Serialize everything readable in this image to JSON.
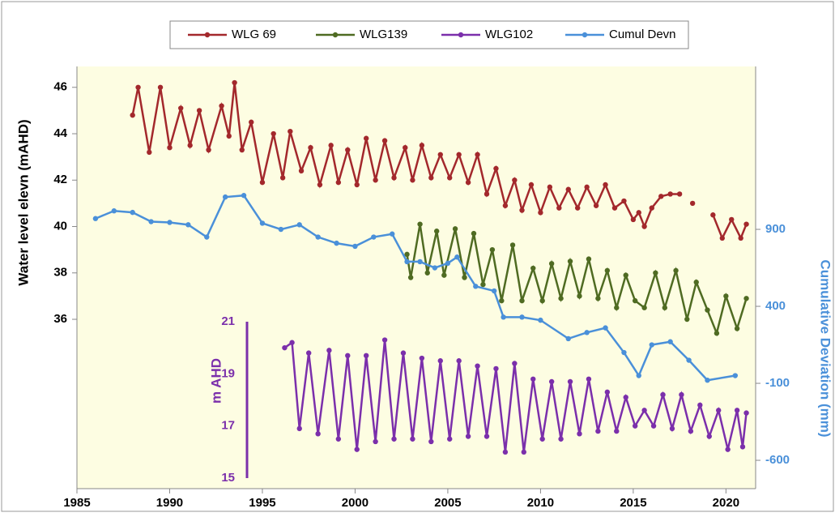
{
  "chart_data": {
    "type": "line",
    "y_label": "Water level elevn (mAHD)",
    "y2_label": "Cumulative Deviation (mm)",
    "y3_label": "m AHD",
    "xlim": [
      1985,
      2021.6
    ],
    "xticks": [
      1985,
      1990,
      1995,
      2000,
      2005,
      2010,
      2015,
      2020
    ],
    "ylim": [
      28.7,
      46.9
    ],
    "yticks": [
      36,
      38,
      40,
      42,
      44,
      46
    ],
    "y2lim": [
      -784,
      1958
    ],
    "y2ticks": [
      -600,
      -100,
      400,
      900
    ],
    "y3lim": [
      15,
      21
    ],
    "y3ticks": [
      15,
      17,
      19,
      21
    ],
    "legend": "top",
    "series": [
      {
        "name": "WLG 69",
        "color": "#a3282c",
        "axis": "y",
        "x": [
          1988.0,
          1988.3,
          1988.9,
          1989.5,
          1990.0,
          1990.6,
          1991.1,
          1991.6,
          1992.1,
          1992.8,
          1993.2,
          1993.5,
          1993.9,
          1994.4,
          1995.0,
          1995.6,
          1996.1,
          1996.5,
          1997.1,
          1997.6,
          1998.1,
          1998.7,
          1999.1,
          1999.6,
          2000.1,
          2000.6,
          2001.1,
          2001.6,
          2002.1,
          2002.7,
          2003.1,
          2003.6,
          2004.1,
          2004.6,
          2005.1,
          2005.6,
          2006.1,
          2006.6,
          2007.1,
          2007.6,
          2008.1,
          2008.6,
          2009.0,
          2009.5,
          2010.0,
          2010.5,
          2011.0,
          2011.5,
          2012.0,
          2012.5,
          2013.0,
          2013.5,
          2014.0,
          2014.5,
          2015.0,
          2015.3,
          2015.6,
          2016.0,
          2016.5,
          2017.0,
          2017.5,
          2017.9,
          2018.2,
          2018.7,
          2019.3,
          2019.8,
          2020.3,
          2020.8,
          2021.1
        ],
        "values": [
          44.8,
          46.0,
          43.2,
          46.0,
          43.4,
          45.1,
          43.5,
          45.0,
          43.3,
          45.2,
          43.9,
          46.2,
          43.3,
          44.5,
          41.9,
          44.0,
          42.1,
          44.1,
          42.4,
          43.4,
          41.8,
          43.5,
          41.9,
          43.3,
          41.8,
          43.8,
          42.0,
          43.7,
          42.1,
          43.4,
          42.0,
          43.5,
          42.1,
          43.1,
          42.1,
          43.1,
          41.9,
          43.1,
          41.4,
          42.5,
          40.9,
          42.0,
          40.7,
          41.8,
          40.6,
          41.7,
          40.8,
          41.6,
          40.8,
          41.7,
          40.9,
          41.8,
          40.8,
          41.1,
          40.3,
          40.6,
          40.0,
          40.8,
          41.3,
          41.4,
          41.4,
          null,
          41.0,
          null,
          40.5,
          39.5,
          40.3,
          39.5,
          40.1
        ]
      },
      {
        "name": "WLG139",
        "color": "#4f6b22",
        "axis": "y",
        "x": [
          2002.8,
          2003.0,
          2003.5,
          2003.9,
          2004.4,
          2004.8,
          2005.4,
          2005.9,
          2006.4,
          2006.9,
          2007.4,
          2007.9,
          2008.5,
          2009.0,
          2009.6,
          2010.1,
          2010.6,
          2011.1,
          2011.6,
          2012.1,
          2012.6,
          2013.1,
          2013.6,
          2014.1,
          2014.6,
          2015.1,
          2015.6,
          2016.2,
          2016.7,
          2017.3,
          2017.9,
          2018.4,
          2019.0,
          2019.5,
          2020.0,
          2020.6,
          2021.1
        ],
        "values": [
          38.8,
          37.8,
          40.1,
          38.0,
          39.8,
          37.9,
          39.9,
          37.8,
          39.7,
          37.5,
          39.0,
          36.8,
          39.2,
          36.8,
          38.2,
          36.8,
          38.4,
          36.9,
          38.5,
          37.0,
          38.6,
          36.9,
          38.1,
          36.5,
          37.9,
          36.8,
          36.5,
          38.0,
          36.5,
          38.1,
          36.0,
          37.6,
          36.4,
          35.4,
          37.0,
          35.6,
          36.9
        ]
      },
      {
        "name": "WLG102",
        "color": "#7b2fab",
        "axis": "y3",
        "x": [
          1996.2,
          1996.6,
          1997.0,
          1997.5,
          1998.0,
          1998.6,
          1999.1,
          1999.6,
          2000.1,
          2000.6,
          2001.1,
          2001.6,
          2002.1,
          2002.6,
          2003.1,
          2003.6,
          2004.1,
          2004.6,
          2005.1,
          2005.6,
          2006.1,
          2006.6,
          2007.1,
          2007.6,
          2008.1,
          2008.6,
          2009.1,
          2009.6,
          2010.1,
          2010.6,
          2011.1,
          2011.6,
          2012.1,
          2012.6,
          2013.1,
          2013.6,
          2014.1,
          2014.6,
          2015.1,
          2015.6,
          2016.1,
          2016.6,
          2017.1,
          2017.6,
          2018.1,
          2018.6,
          2019.1,
          2019.6,
          2020.1,
          2020.6,
          2020.9,
          2021.1
        ],
        "values": [
          20.0,
          20.2,
          16.9,
          19.8,
          16.7,
          19.9,
          16.5,
          19.7,
          16.1,
          19.7,
          16.4,
          20.3,
          16.5,
          19.8,
          16.5,
          19.6,
          16.4,
          19.5,
          16.5,
          19.5,
          16.6,
          19.3,
          16.6,
          19.2,
          16.0,
          19.4,
          16.0,
          18.8,
          16.5,
          18.7,
          16.5,
          18.7,
          16.7,
          18.8,
          16.8,
          18.3,
          16.8,
          18.1,
          17.0,
          17.6,
          17.0,
          18.2,
          16.9,
          18.2,
          16.8,
          17.8,
          16.6,
          17.6,
          16.1,
          17.6,
          16.2,
          17.5
        ]
      },
      {
        "name": "Cumul Devn",
        "color": "#4a90d9",
        "axis": "y2",
        "x": [
          1986.0,
          1987.0,
          1988.0,
          1989.0,
          1990.0,
          1991.0,
          1992.0,
          1993.0,
          1994.0,
          1995.0,
          1996.0,
          1997.0,
          1998.0,
          1999.0,
          2000.0,
          2001.0,
          2002.0,
          2002.8,
          2003.5,
          2004.3,
          2005.0,
          2005.5,
          2006.5,
          2007.5,
          2008.0,
          2009.0,
          2010.0,
          2011.5,
          2012.5,
          2013.5,
          2014.5,
          2015.3,
          2016.0,
          2017.0,
          2018.0,
          2019.0,
          2020.5
        ],
        "values": [
          970,
          1020,
          1010,
          950,
          945,
          930,
          850,
          1110,
          1120,
          940,
          900,
          930,
          850,
          810,
          790,
          850,
          870,
          690,
          690,
          650,
          680,
          720,
          530,
          500,
          330,
          330,
          310,
          190,
          230,
          260,
          100,
          -50,
          150,
          170,
          50,
          -80,
          -50
        ]
      }
    ]
  }
}
